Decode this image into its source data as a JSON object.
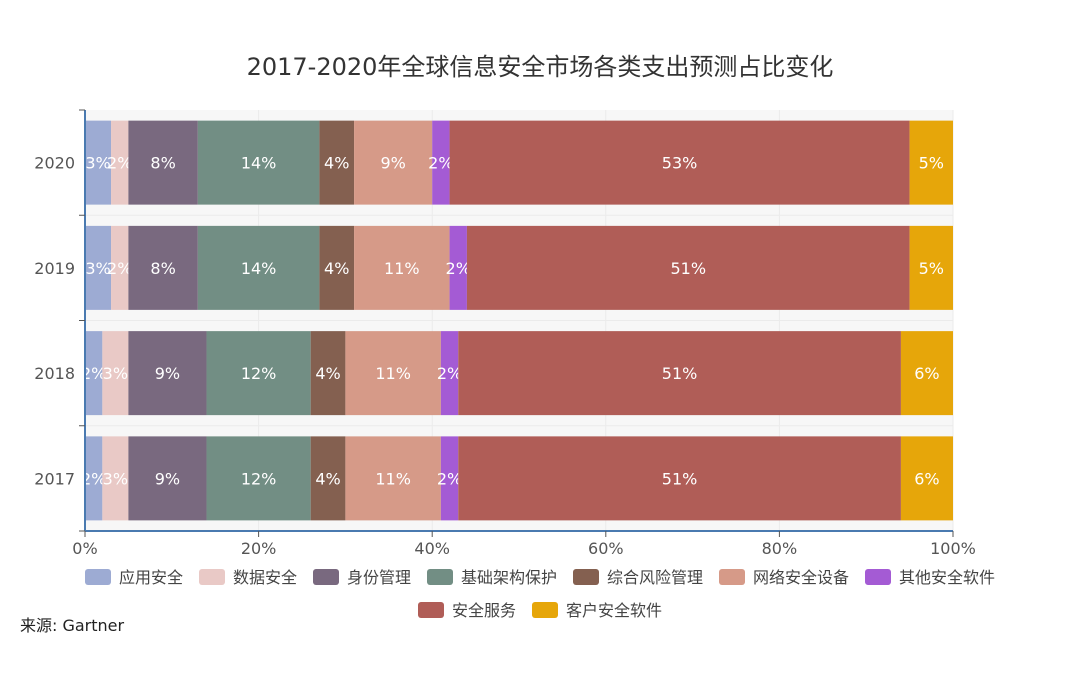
{
  "chart_data": {
    "type": "bar",
    "orientation": "horizontal",
    "stacked": true,
    "title": "2017-2020年全球信息安全市场各类支出预测占比变化",
    "source": "来源: Gartner",
    "categories": [
      "2020",
      "2019",
      "2018",
      "2017"
    ],
    "xlim": [
      0,
      100
    ],
    "x_ticks": [
      "0%",
      "20%",
      "40%",
      "60%",
      "80%",
      "100%"
    ],
    "legend_position": "bottom",
    "grid": true,
    "series": [
      {
        "name": "应用安全",
        "color": "#9dabd3",
        "values": [
          3,
          3,
          2,
          2
        ],
        "labels": [
          "3%",
          "3%",
          "2%",
          "2%"
        ]
      },
      {
        "name": "数据安全",
        "color": "#e9c9c6",
        "values": [
          2,
          2,
          3,
          3
        ],
        "labels": [
          "2%",
          "2%",
          "3%",
          "3%"
        ]
      },
      {
        "name": "身份管理",
        "color": "#79697f",
        "values": [
          8,
          8,
          9,
          9
        ],
        "labels": [
          "8%",
          "8%",
          "9%",
          "9%"
        ]
      },
      {
        "name": "基础架构保护",
        "color": "#728e84",
        "values": [
          14,
          14,
          12,
          12
        ],
        "labels": [
          "14%",
          "14%",
          "12%",
          "12%"
        ]
      },
      {
        "name": "综合风险管理",
        "color": "#846050",
        "values": [
          4,
          4,
          4,
          4
        ],
        "labels": [
          "4%",
          "4%",
          "4%",
          "4%"
        ]
      },
      {
        "name": "网络安全设备",
        "color": "#d69a88",
        "values": [
          9,
          11,
          11,
          11
        ],
        "labels": [
          "9%",
          "11%",
          "11%",
          "11%"
        ]
      },
      {
        "name": "其他安全软件",
        "color": "#a45bd4",
        "values": [
          2,
          2,
          2,
          2
        ],
        "labels": [
          "2%",
          "2%",
          "2%",
          "2%"
        ]
      },
      {
        "name": "安全服务",
        "color": "#b05d57",
        "values": [
          53,
          51,
          51,
          51
        ],
        "labels": [
          "53%",
          "51%",
          "51%",
          "51%"
        ]
      },
      {
        "name": "客户安全软件",
        "color": "#e6a60a",
        "values": [
          5,
          5,
          6,
          6
        ],
        "labels": [
          "5%",
          "5%",
          "6%",
          "6%"
        ]
      }
    ]
  }
}
